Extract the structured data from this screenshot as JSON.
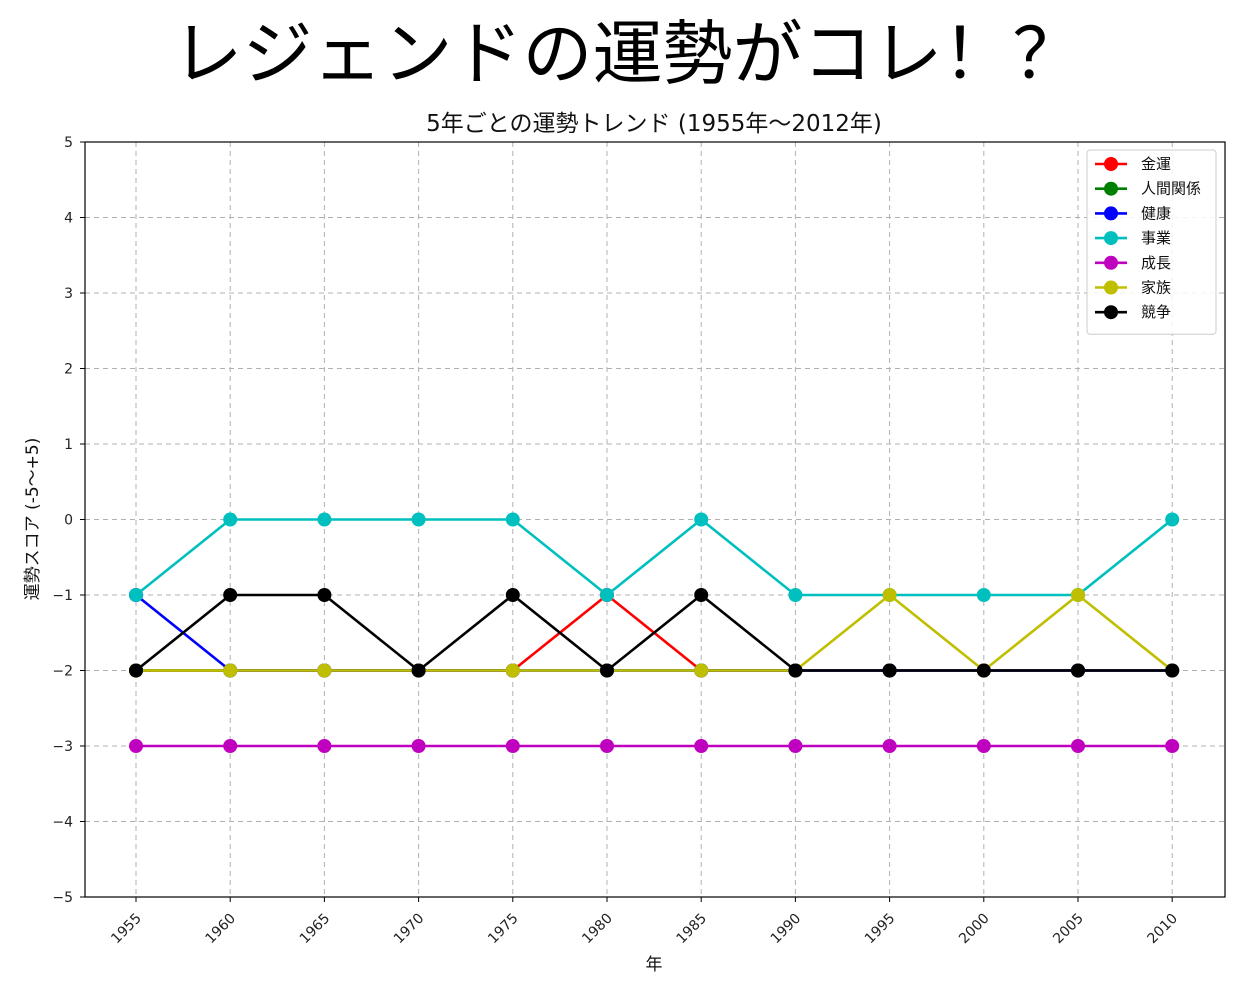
{
  "banner": {
    "text": "レジェンドの運勢がコレ！？"
  },
  "chart_data": {
    "type": "line",
    "title": "5年ごとの運勢トレンド (1955年〜2012年)",
    "xlabel": "年",
    "ylabel": "運勢スコア (-5〜+5)",
    "x": [
      1955,
      1960,
      1965,
      1970,
      1975,
      1980,
      1985,
      1990,
      1995,
      2000,
      2005,
      2010
    ],
    "x_tick_labels": [
      "1955",
      "1960",
      "1965",
      "1970",
      "1975",
      "1980",
      "1985",
      "1990",
      "1995",
      "2000",
      "2005",
      "2010"
    ],
    "y_ticks": [
      5,
      4,
      3,
      2,
      1,
      0,
      -1,
      -2,
      -3,
      -4,
      -5
    ],
    "y_tick_labels": [
      "5",
      "4",
      "3",
      "2",
      "1",
      "0",
      "−1",
      "−2",
      "−3",
      "−4",
      "−5"
    ],
    "ylim": [
      -5,
      5
    ],
    "grid": true,
    "legend_position": "top-right",
    "series": [
      {
        "name": "金運",
        "color": "#ff0000",
        "values": [
          -2,
          -2,
          -2,
          -2,
          -2,
          -1,
          -2,
          -2,
          -2,
          -2,
          -2,
          -2
        ]
      },
      {
        "name": "人間関係",
        "color": "#008000",
        "values": [
          -2,
          -2,
          -2,
          -2,
          -2,
          -2,
          -2,
          -2,
          -2,
          -2,
          -2,
          -2
        ]
      },
      {
        "name": "健康",
        "color": "#0000ff",
        "values": [
          -1,
          -2,
          -2,
          -2,
          -2,
          -2,
          -2,
          -2,
          -2,
          -2,
          -2,
          -2
        ]
      },
      {
        "name": "事業",
        "color": "#00bfbf",
        "values": [
          -1,
          0,
          0,
          0,
          0,
          -1,
          0,
          -1,
          -1,
          -1,
          -1,
          0
        ]
      },
      {
        "name": "成長",
        "color": "#bf00bf",
        "values": [
          -3,
          -3,
          -3,
          -3,
          -3,
          -3,
          -3,
          -3,
          -3,
          -3,
          -3,
          -3
        ]
      },
      {
        "name": "家族",
        "color": "#bfbf00",
        "values": [
          -2,
          -2,
          -2,
          -2,
          -2,
          -2,
          -2,
          -2,
          -1,
          -2,
          -1,
          -2
        ]
      },
      {
        "name": "競争",
        "color": "#000000",
        "values": [
          -2,
          -1,
          -1,
          -2,
          -1,
          -2,
          -1,
          -2,
          -2,
          -2,
          -2,
          -2
        ]
      }
    ]
  }
}
